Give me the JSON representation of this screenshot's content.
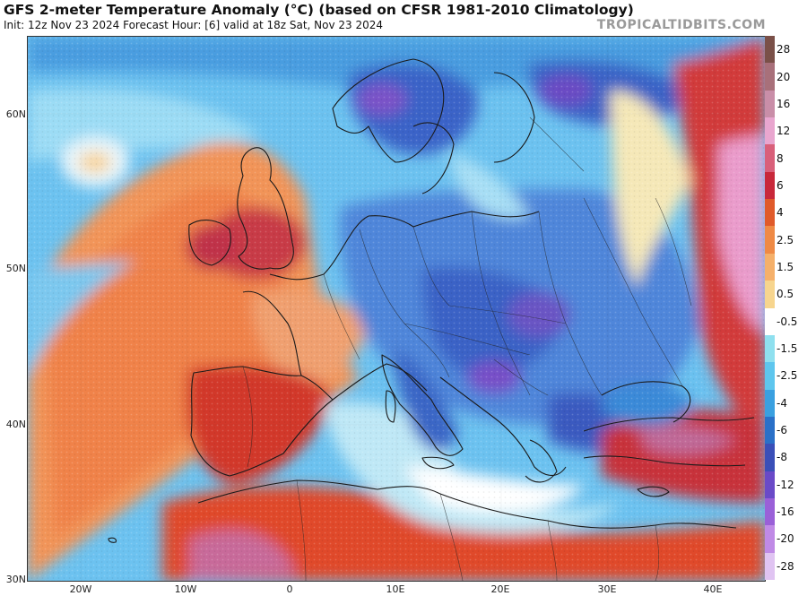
{
  "header": {
    "title": "GFS 2-meter Temperature Anomaly (°C) (based on CFSR 1981-2010 Climatology)",
    "subtitle": "Init: 12z Nov 23 2024   Forecast Hour: [6]   valid at 18z Sat, Nov 23 2024",
    "credit": "TROPICALTIDBITS.COM"
  },
  "axes": {
    "latitudes": [
      "60N",
      "50N",
      "40N",
      "30N"
    ],
    "longitudes": [
      "20W",
      "10W",
      "0",
      "10E",
      "20E",
      "30E",
      "40E"
    ]
  },
  "colorbar": {
    "labels": [
      "28",
      "20",
      "16",
      "12",
      "8",
      "6",
      "4",
      "2.5",
      "1.5",
      "0.5",
      "-0.5",
      "-1.5",
      "-2.5",
      "-4",
      "-6",
      "-8",
      "-12",
      "-16",
      "-20",
      "-28"
    ],
    "colors": [
      "#7a5048",
      "#a8707a",
      "#c98ea8",
      "#e9a6cf",
      "#d9607a",
      "#c8283a",
      "#e05a2a",
      "#ef8a45",
      "#f5b06a",
      "#f7d58e",
      "#ffffff",
      "#8fe0ef",
      "#5ec6ee",
      "#3aa0e0",
      "#2a70c8",
      "#3a4fb8",
      "#6a4ac8",
      "#9a60d8",
      "#c08ae6",
      "#e0c4f2"
    ]
  },
  "colors": {
    "ocean_warm": "#f08a50",
    "ocean_cool": "#6ac0f0",
    "land_cold": "#3a6ed0",
    "land_warm": "#d63a2a",
    "border": "#1a1a1a"
  }
}
